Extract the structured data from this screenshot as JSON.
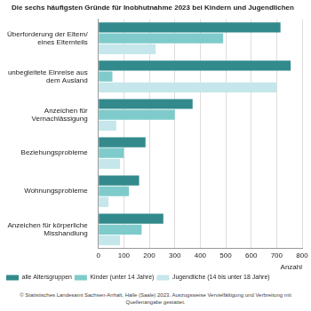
{
  "chart_data": {
    "type": "bar",
    "orientation": "horizontal",
    "title": "Die sechs häufigsten Gründe für Inobhutnahme 2023 bei Kindern und Jugendlichen",
    "categories": [
      "Überforderung der Eltern/ eines Elternteils",
      "unbegleitete Einreise aus dem Ausland",
      "Anzeichen für Vernachlässigung",
      "Beziehungsprobleme",
      "Wohnungsprobleme",
      "Anzeichen für körperliche Misshandlung"
    ],
    "series": [
      {
        "name": "alle Altersgruppen",
        "color": "#338a8c",
        "values": [
          715,
          755,
          370,
          185,
          160,
          255
        ]
      },
      {
        "name": "Kinder (unter 14 Jahre)",
        "color": "#7fcbcb",
        "values": [
          490,
          55,
          300,
          100,
          120,
          170
        ]
      },
      {
        "name": "Jugendliche (14 bis unter 18 Jahre)",
        "color": "#c5e6ea",
        "values": [
          225,
          700,
          70,
          85,
          40,
          85
        ]
      }
    ],
    "x_label": "Anzahl",
    "xlim": [
      0,
      800
    ],
    "xticks": [
      0,
      100,
      200,
      300,
      400,
      500,
      600,
      700,
      800
    ],
    "grid": true,
    "legend": "bottom-left",
    "source": "© Statistisches Landesamt Sachsen-Anhalt, Halle (Saale) 2023. Auszugsweise Vervielfältigung und Verbreitung mit Quellenangabe gestattet."
  }
}
